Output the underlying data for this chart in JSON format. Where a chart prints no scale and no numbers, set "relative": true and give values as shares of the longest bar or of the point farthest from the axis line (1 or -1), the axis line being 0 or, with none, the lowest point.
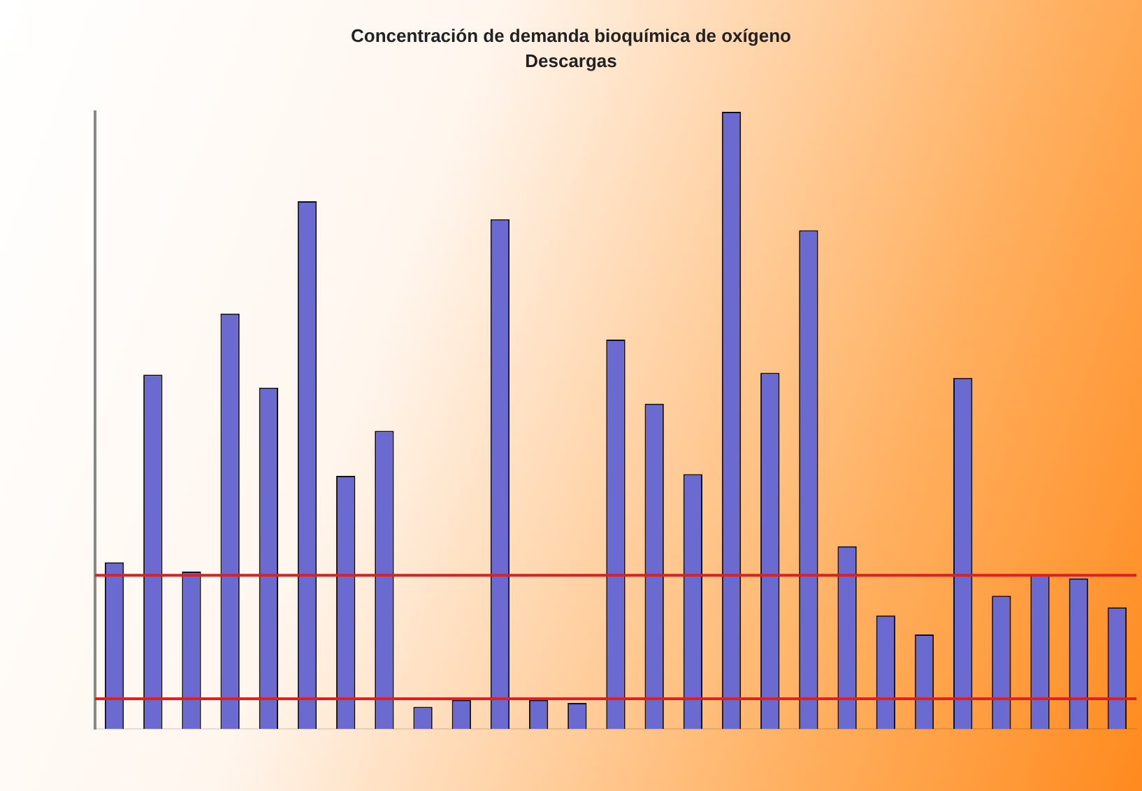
{
  "chart_data": {
    "type": "bar",
    "title": "Concentración de demanda bioquímica de oxígeno",
    "subtitle": "Descargas",
    "relative": true,
    "color": "#6a6ad0",
    "categories": [
      null,
      null,
      null,
      null,
      null,
      null,
      null,
      null,
      null,
      null,
      null,
      null,
      null,
      null,
      null,
      null,
      null,
      null,
      null,
      null,
      null,
      null,
      null,
      null,
      null,
      null,
      null
    ],
    "values": [
      0.27,
      0.574,
      0.255,
      0.673,
      0.553,
      0.855,
      0.41,
      0.483,
      0.036,
      0.047,
      0.826,
      0.047,
      0.042,
      0.631,
      0.527,
      0.413,
      1,
      0.577,
      0.808,
      0.296,
      0.184,
      0.153,
      0.569,
      0.216,
      0.249,
      0.244,
      0.197
    ],
    "ref_lines": [
      {
        "axis": "y",
        "value": 0.249,
        "color": "#e02020"
      },
      {
        "axis": "y",
        "value": 0.049,
        "color": "#e02020"
      }
    ],
    "grid": false,
    "legend": false
  }
}
